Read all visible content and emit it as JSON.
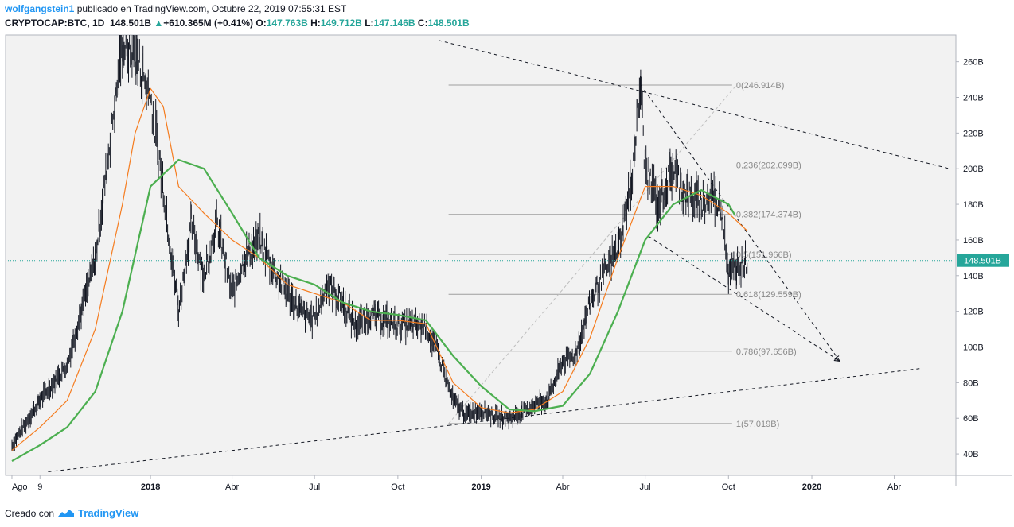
{
  "header": {
    "author": "wolfgangstein1",
    "published_text": "publicado en TradingView.com, Octubre 22, 2019 07:55:31 EST",
    "symbol": "CRYPTOCAP:BTC, 1D",
    "last": "148.501B",
    "change_arrow": "▲",
    "change": "+610.365M (+0.41%)",
    "o_label": "O:",
    "o_value": "147.763B",
    "h_label": "H:",
    "h_value": "149.712B",
    "l_label": "L:",
    "l_value": "147.146B",
    "c_label": "C:",
    "c_value": "148.501B"
  },
  "footer": {
    "created_with": "Creado con",
    "brand": "TradingView",
    "logo_icon": "tradingview-logo-icon"
  },
  "colors": {
    "candles": "#131722",
    "ma_fast": "#f57c1f",
    "ma_slow": "#4caf50",
    "price_line": "#26a69a",
    "fib": "#9e9e9e",
    "trend": "#131722",
    "projection": "#bdbdbd",
    "price_label_bg": "#26a69a"
  },
  "chart_data": {
    "type": "line",
    "title": "CRYPTOCAP:BTC, 1D",
    "subtitle": "",
    "xlabel": "",
    "ylabel": "",
    "ylim": [
      28,
      275
    ],
    "grid": false,
    "x_ticks": [
      "Ago",
      "9",
      "2018",
      "Abr",
      "Jul",
      "Oct",
      "2019",
      "Abr",
      "Jul",
      "Oct",
      "2020",
      "Abr"
    ],
    "y_ticks": [
      "40B",
      "60B",
      "80B",
      "100B",
      "120B",
      "140B",
      "160B",
      "180B",
      "200B",
      "220B",
      "240B",
      "260B"
    ],
    "y_tick_values": [
      40,
      60,
      80,
      100,
      120,
      140,
      160,
      180,
      200,
      220,
      240,
      260
    ],
    "current_price_label": "148.501B",
    "current_price": 148.5,
    "series": [
      {
        "type": "candles-approx",
        "dates": [
          "2017-08-01",
          "2017-09-01",
          "2017-10-01",
          "2017-11-01",
          "2017-12-01",
          "2017-12-15",
          "2018-01-01",
          "2018-01-15",
          "2018-02-01",
          "2018-02-15",
          "2018-03-01",
          "2018-03-15",
          "2018-04-01",
          "2018-04-15",
          "2018-05-01",
          "2018-05-15",
          "2018-06-01",
          "2018-06-15",
          "2018-07-01",
          "2018-07-15",
          "2018-08-01",
          "2018-08-15",
          "2018-09-01",
          "2018-09-15",
          "2018-10-01",
          "2018-10-15",
          "2018-11-01",
          "2018-11-15",
          "2018-12-01",
          "2018-12-15",
          "2019-01-01",
          "2019-01-15",
          "2019-02-01",
          "2019-02-15",
          "2019-03-01",
          "2019-03-15",
          "2019-04-01",
          "2019-04-15",
          "2019-05-01",
          "2019-05-15",
          "2019-06-01",
          "2019-06-15",
          "2019-06-26",
          "2019-07-01",
          "2019-07-15",
          "2019-08-01",
          "2019-08-15",
          "2019-09-01",
          "2019-09-15",
          "2019-09-25",
          "2019-10-01",
          "2019-10-10",
          "2019-10-22"
        ],
        "values": [
          45,
          70,
          90,
          150,
          270,
          265,
          240,
          190,
          120,
          170,
          140,
          170,
          130,
          150,
          160,
          145,
          130,
          120,
          115,
          135,
          125,
          112,
          118,
          115,
          112,
          112,
          112,
          95,
          70,
          62,
          65,
          61,
          60,
          63,
          68,
          70,
          92,
          95,
          125,
          140,
          155,
          190,
          247,
          200,
          180,
          200,
          185,
          180,
          185,
          175,
          140,
          145,
          148.5
        ]
      },
      {
        "name": "",
        "type": "ma-fast",
        "dates": [
          "2017-08-01",
          "2017-09-01",
          "2017-10-01",
          "2017-11-01",
          "2017-12-01",
          "2017-12-15",
          "2018-01-01",
          "2018-01-15",
          "2018-02-01",
          "2018-03-01",
          "2018-04-01",
          "2018-05-01",
          "2018-06-01",
          "2018-07-01",
          "2018-08-01",
          "2018-09-01",
          "2018-10-01",
          "2018-11-01",
          "2018-12-01",
          "2019-01-01",
          "2019-02-01",
          "2019-03-01",
          "2019-04-01",
          "2019-05-01",
          "2019-06-01",
          "2019-07-01",
          "2019-08-01",
          "2019-09-01",
          "2019-10-01",
          "2019-10-22"
        ],
        "values": [
          42,
          55,
          70,
          110,
          180,
          220,
          245,
          235,
          190,
          175,
          160,
          150,
          135,
          130,
          125,
          115,
          115,
          113,
          80,
          66,
          63,
          65,
          75,
          105,
          150,
          190,
          190,
          185,
          175,
          165
        ]
      },
      {
        "name": "",
        "type": "ma-slow",
        "dates": [
          "2017-08-01",
          "2017-09-01",
          "2017-10-01",
          "2017-11-01",
          "2017-12-01",
          "2018-01-01",
          "2018-02-01",
          "2018-03-01",
          "2018-04-01",
          "2018-05-01",
          "2018-06-01",
          "2018-07-01",
          "2018-08-01",
          "2018-09-01",
          "2018-10-01",
          "2018-11-01",
          "2018-12-01",
          "2019-01-01",
          "2019-02-01",
          "2019-03-01",
          "2019-04-01",
          "2019-05-01",
          "2019-06-01",
          "2019-07-01",
          "2019-08-01",
          "2019-09-01",
          "2019-10-01",
          "2019-10-08"
        ],
        "values": [
          36,
          45,
          55,
          75,
          120,
          190,
          205,
          200,
          175,
          150,
          140,
          135,
          125,
          120,
          118,
          115,
          95,
          78,
          65,
          64,
          67,
          85,
          120,
          160,
          180,
          188,
          180,
          174
        ]
      }
    ],
    "fibonacci": [
      {
        "label": "0(246.914B)",
        "value": 246.914
      },
      {
        "label": "0.236(202.099B)",
        "value": 202.099
      },
      {
        "label": "0.382(174.374B)",
        "value": 174.374
      },
      {
        "label": "0.5(151.966B)",
        "value": 151.966
      },
      {
        "label": "0.618(129.559B)",
        "value": 129.559
      },
      {
        "label": "0.786(97.656B)",
        "value": 97.656
      },
      {
        "label": "1(57.019B)",
        "value": 57.019
      }
    ],
    "trendlines": [
      {
        "name": "",
        "from": [
          "2018-11-26",
          56
        ],
        "to": [
          "2020-05-01",
          88
        ]
      },
      {
        "name": "",
        "from": [
          "2017-09-10",
          30
        ],
        "to": [
          "2018-11-26",
          56
        ]
      },
      {
        "name": "",
        "from": [
          "2018-11-15",
          272
        ],
        "to": [
          "2020-06-01",
          200
        ]
      },
      {
        "name": "",
        "from": [
          "2019-06-26",
          247
        ],
        "to": [
          "2020-02-01",
          92
        ]
      },
      {
        "name": "",
        "from": [
          "2019-07-05",
          162
        ],
        "to": [
          "2020-02-01",
          92
        ]
      },
      {
        "name": "",
        "from": [
          "2018-11-26",
          57
        ],
        "to": [
          "2019-10-10",
          247
        ]
      }
    ]
  }
}
